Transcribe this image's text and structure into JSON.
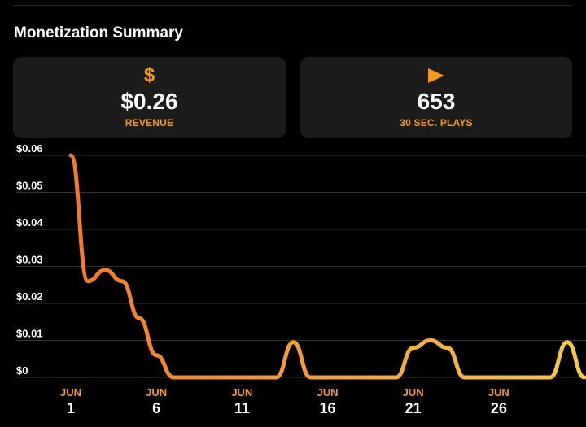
{
  "section": {
    "title": "Monetization Summary"
  },
  "cards": {
    "revenue": {
      "icon": "dollar-icon",
      "icon_glyph": "$",
      "value": "$0.26",
      "label": "REVENUE"
    },
    "plays": {
      "icon": "play-icon",
      "value": "653",
      "label": "30 SEC. PLAYS"
    }
  },
  "colors": {
    "background": "#000000",
    "card": "#1c1c1c",
    "accent": "#f39a1e",
    "line_start": "#f07a2c",
    "line_end": "#f5c94a",
    "grid": "#333333"
  },
  "chart_data": {
    "type": "line",
    "title": "",
    "xlabel": "",
    "ylabel": "",
    "ylim": [
      0,
      0.06
    ],
    "xlim": [
      1,
      31
    ],
    "grid": true,
    "y_ticks": [
      "$0.06",
      "$0.05",
      "$0.04",
      "$0.03",
      "$0.02",
      "$0.01",
      "$0"
    ],
    "x_ticks": [
      {
        "month": "JUN",
        "day": "1"
      },
      {
        "month": "JUN",
        "day": "6"
      },
      {
        "month": "JUN",
        "day": "11"
      },
      {
        "month": "JUN",
        "day": "16"
      },
      {
        "month": "JUN",
        "day": "21"
      },
      {
        "month": "JUN",
        "day": "26"
      }
    ],
    "series": [
      {
        "x": [
          1,
          2,
          3,
          4,
          5,
          6,
          7,
          8,
          9,
          10,
          11,
          12,
          13,
          14,
          15,
          16,
          17,
          18,
          19,
          20,
          21,
          22,
          23,
          24,
          25,
          26,
          27,
          28,
          29,
          30,
          31
        ],
        "values": [
          0.06,
          0.026,
          0.029,
          0.026,
          0.016,
          0.006,
          0,
          0,
          0,
          0,
          0,
          0,
          0,
          0.0095,
          0,
          0,
          0,
          0,
          0,
          0,
          0.008,
          0.01,
          0.008,
          0,
          0,
          0,
          0,
          0,
          0,
          0.0095,
          0
        ]
      }
    ]
  }
}
